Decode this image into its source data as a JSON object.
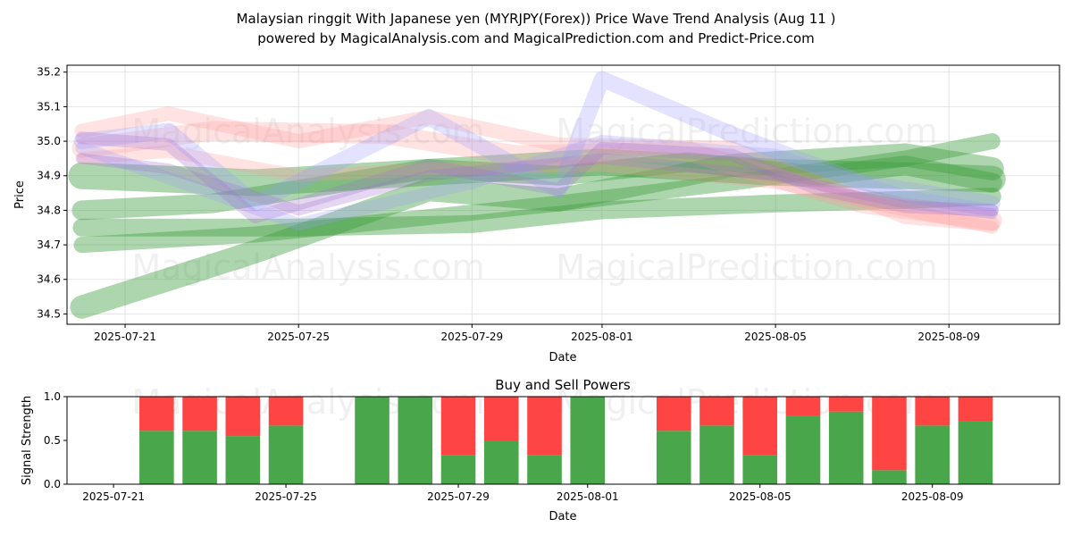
{
  "title_lines": [
    "Malaysian ringgit With Japanese yen (MYRJPY(Forex)) Price Wave Trend Analysis (Aug 11 )",
    "powered by MagicalAnalysis.com and MagicalPrediction.com and Predict-Price.com"
  ],
  "watermarks": [
    "MagicalAnalysis.com",
    "MagicalPrediction.com"
  ],
  "colors": {
    "buy": "#4aa64a",
    "sell": "#ff4444",
    "wave_green": "#3d9e3d",
    "wave_red": "#ff9999",
    "wave_blue": "#9999ff",
    "wave_purple": "#a070d0",
    "grid": "#dddddd"
  },
  "chart_data": [
    {
      "type": "line",
      "title": "",
      "xlabel": "Date",
      "ylabel": "Price",
      "x_ticks": [
        "2025-07-21",
        "2025-07-25",
        "2025-07-29",
        "2025-08-01",
        "2025-08-05",
        "2025-08-09"
      ],
      "y_ticks": [
        "34.5",
        "34.6",
        "34.7",
        "34.8",
        "34.9",
        "35.0",
        "35.1",
        "35.2"
      ],
      "xlim": [
        "2025-07-20",
        "2025-08-11"
      ],
      "ylim": [
        34.47,
        35.22
      ],
      "grid": true,
      "series": [
        {
          "color": "green",
          "x": [
            "2025-07-20",
            "2025-07-24",
            "2025-07-28",
            "2025-07-31",
            "2025-08-04",
            "2025-08-08",
            "2025-08-10"
          ],
          "y": [
            34.52,
            34.68,
            34.86,
            34.83,
            34.93,
            34.96,
            34.92
          ]
        },
        {
          "color": "green",
          "x": [
            "2025-07-20",
            "2025-07-23",
            "2025-07-28",
            "2025-07-31",
            "2025-08-03",
            "2025-08-06",
            "2025-08-08",
            "2025-08-10"
          ],
          "y": [
            34.8,
            34.82,
            34.92,
            34.9,
            34.94,
            34.9,
            34.93,
            34.88
          ]
        },
        {
          "color": "green",
          "x": [
            "2025-07-20",
            "2025-07-24",
            "2025-07-28",
            "2025-08-01",
            "2025-08-05",
            "2025-08-08",
            "2025-08-10"
          ],
          "y": [
            34.9,
            34.88,
            34.91,
            34.94,
            34.91,
            34.9,
            34.89
          ]
        },
        {
          "color": "green",
          "x": [
            "2025-07-20",
            "2025-07-25",
            "2025-07-29",
            "2025-08-01",
            "2025-08-05",
            "2025-08-08",
            "2025-08-10"
          ],
          "y": [
            34.75,
            34.75,
            34.76,
            34.8,
            34.82,
            34.83,
            34.84
          ]
        },
        {
          "color": "green",
          "x": [
            "2025-07-20",
            "2025-07-24",
            "2025-07-28",
            "2025-07-31",
            "2025-08-04",
            "2025-08-08",
            "2025-08-10"
          ],
          "y": [
            34.7,
            34.73,
            34.78,
            34.82,
            34.88,
            34.95,
            35.0
          ]
        },
        {
          "color": "red",
          "x": [
            "2025-07-20",
            "2025-07-22",
            "2025-07-25",
            "2025-07-28",
            "2025-07-31",
            "2025-08-04",
            "2025-08-08",
            "2025-08-10"
          ],
          "y": [
            35.03,
            35.08,
            35.0,
            35.07,
            34.99,
            34.98,
            34.78,
            34.76
          ]
        },
        {
          "color": "red",
          "x": [
            "2025-07-20",
            "2025-07-23",
            "2025-07-27",
            "2025-07-30",
            "2025-08-03",
            "2025-08-07",
            "2025-08-10"
          ],
          "y": [
            34.98,
            35.03,
            35.02,
            34.96,
            34.97,
            34.82,
            34.77
          ]
        },
        {
          "color": "red",
          "x": [
            "2025-07-20",
            "2025-07-22",
            "2025-07-25",
            "2025-07-28",
            "2025-08-01",
            "2025-08-05",
            "2025-08-08",
            "2025-08-10"
          ],
          "y": [
            34.95,
            34.97,
            34.9,
            34.92,
            34.93,
            34.88,
            34.8,
            34.75
          ]
        },
        {
          "color": "blue",
          "x": [
            "2025-07-20",
            "2025-07-22",
            "2025-07-24",
            "2025-07-28",
            "2025-07-31",
            "2025-08-01",
            "2025-08-04",
            "2025-08-07",
            "2025-08-10"
          ],
          "y": [
            35.0,
            35.03,
            34.82,
            35.07,
            34.86,
            35.18,
            35.02,
            34.88,
            34.82
          ]
        },
        {
          "color": "blue",
          "x": [
            "2025-07-20",
            "2025-07-23",
            "2025-07-25",
            "2025-07-29",
            "2025-08-01",
            "2025-08-05",
            "2025-08-08",
            "2025-08-10"
          ],
          "y": [
            34.98,
            34.85,
            34.76,
            34.88,
            35.0,
            34.96,
            34.84,
            34.8
          ]
        },
        {
          "color": "purple",
          "x": [
            "2025-07-20",
            "2025-07-22",
            "2025-07-24",
            "2025-07-28",
            "2025-07-31",
            "2025-08-01",
            "2025-08-04",
            "2025-08-06",
            "2025-08-08",
            "2025-08-10"
          ],
          "y": [
            35.01,
            34.99,
            34.78,
            34.93,
            34.86,
            34.98,
            34.96,
            34.86,
            34.81,
            34.8
          ]
        },
        {
          "color": "purple",
          "x": [
            "2025-07-20",
            "2025-07-22",
            "2025-07-25",
            "2025-07-28",
            "2025-08-01",
            "2025-08-05",
            "2025-08-08",
            "2025-08-10"
          ],
          "y": [
            34.95,
            34.92,
            34.8,
            34.9,
            34.95,
            34.9,
            34.82,
            34.79
          ]
        }
      ]
    },
    {
      "type": "bar",
      "title": "Buy and Sell Powers",
      "xlabel": "Date",
      "ylabel": "Signal Strength",
      "x_ticks": [
        "2025-07-21",
        "2025-07-25",
        "2025-07-29",
        "2025-08-01",
        "2025-08-05",
        "2025-08-09"
      ],
      "y_ticks": [
        "0.0",
        "0.5",
        "1.0"
      ],
      "xlim": [
        "2025-07-20",
        "2025-08-11"
      ],
      "ylim": [
        0,
        1
      ],
      "stacked": true,
      "categories": [
        "2025-07-22",
        "2025-07-23",
        "2025-07-24",
        "2025-07-25",
        "2025-07-27",
        "2025-07-28",
        "2025-07-29",
        "2025-07-30",
        "2025-07-31",
        "2025-08-01",
        "2025-08-03",
        "2025-08-04",
        "2025-08-05",
        "2025-08-06",
        "2025-08-07",
        "2025-08-08",
        "2025-08-09",
        "2025-08-10"
      ],
      "series": [
        {
          "name": "buy",
          "values": [
            0.61,
            0.61,
            0.55,
            0.67,
            1.0,
            1.0,
            0.33,
            0.5,
            0.33,
            1.0,
            0.61,
            0.67,
            0.33,
            0.78,
            0.83,
            0.16,
            0.67,
            0.72
          ]
        },
        {
          "name": "sell",
          "values": [
            0.39,
            0.39,
            0.45,
            0.33,
            0.0,
            0.0,
            0.67,
            0.5,
            0.67,
            0.0,
            0.39,
            0.33,
            0.67,
            0.22,
            0.17,
            0.84,
            0.33,
            0.28
          ]
        }
      ]
    }
  ]
}
